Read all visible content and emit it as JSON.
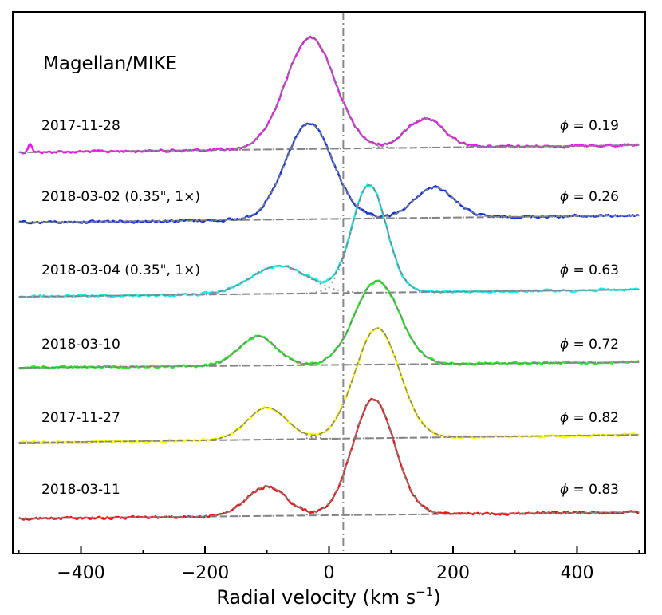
{
  "chart_data": {
    "type": "line",
    "title": "Magellan/MIKE",
    "xlabel_main": "Radial velocity (km s",
    "xlabel_sup": "−1",
    "xlabel_close": ")",
    "xlim": [
      -510,
      510
    ],
    "xticks": [
      -400,
      -200,
      0,
      200,
      400
    ],
    "xtick_labels": [
      "−400",
      "−200",
      "0",
      "200",
      "400"
    ],
    "reference_line_velocity": 23,
    "series": [
      {
        "date": "2017-11-28",
        "phase_symbol": "ϕ",
        "phase": "= 0.19",
        "color": "#ee11ee",
        "peaks": [
          {
            "v": -30,
            "h": 140,
            "w": 40
          },
          {
            "v": 155,
            "h": 37,
            "w": 30
          }
        ],
        "baseline": [
          -5,
          4
        ],
        "spike_v": -482
      },
      {
        "date": "2018-03-02 (0.35\", 1×)",
        "phase_symbol": "ϕ",
        "phase": "= 0.26",
        "color": "#1133dd",
        "peaks": [
          {
            "v": -32,
            "h": 120,
            "w": 38
          },
          {
            "v": 170,
            "h": 38,
            "w": 32
          }
        ],
        "baseline": [
          -4,
          5
        ]
      },
      {
        "date": "2018-03-04 (0.35\", 1×)",
        "phase_symbol": "ϕ",
        "phase": "= 0.63",
        "color": "#11eeee",
        "peaks": [
          {
            "v": -80,
            "h": 35,
            "w": 45
          },
          {
            "v": 65,
            "h": 135,
            "w": 28
          }
        ],
        "baseline": [
          -3,
          6
        ]
      },
      {
        "date": "2018-03-10",
        "phase_symbol": "ϕ",
        "phase": "= 0.72",
        "color": "#22ee22",
        "peaks": [
          {
            "v": -115,
            "h": 37,
            "w": 30
          },
          {
            "v": 78,
            "h": 105,
            "w": 36
          }
        ],
        "baseline": [
          -3,
          4
        ]
      },
      {
        "date": "2017-11-27",
        "phase_symbol": "ϕ",
        "phase": "= 0.82",
        "color": "#ffff00",
        "peaks": [
          {
            "v": -100,
            "h": 40,
            "w": 32
          },
          {
            "v": 78,
            "h": 138,
            "w": 36
          }
        ],
        "baseline": [
          -6,
          4
        ]
      },
      {
        "date": "2018-03-11",
        "phase_symbol": "ϕ",
        "phase": "= 0.83",
        "color": "#ee1111",
        "peaks": [
          {
            "v": -100,
            "h": 37,
            "w": 32
          },
          {
            "v": 72,
            "h": 145,
            "w": 34
          }
        ],
        "baseline": [
          -4,
          4
        ]
      }
    ]
  }
}
